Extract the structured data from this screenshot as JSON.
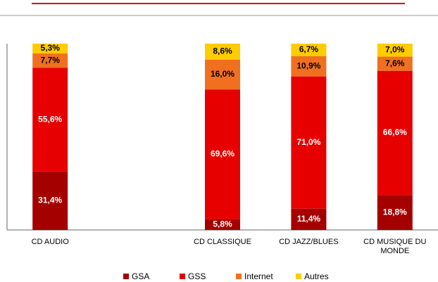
{
  "chart_data": {
    "type": "stacked_bar",
    "categories": [
      "CD AUDIO",
      null,
      "CD CLASSIQUE",
      "CD JAZZ/BLUES",
      "CD MUSIQUE DU MONDE"
    ],
    "series": [
      {
        "name": "GSA",
        "color": "#a50000",
        "values": [
          31.4,
          null,
          5.8,
          11.4,
          18.8
        ],
        "value_labels": [
          "31,4%",
          null,
          "5,8%",
          "11,4%",
          "18,8%"
        ]
      },
      {
        "name": "GSS",
        "color": "#e60000",
        "values": [
          55.6,
          null,
          69.6,
          71.0,
          66.6
        ],
        "value_labels": [
          "55,6%",
          null,
          "69,6%",
          "71,0%",
          "66,6%"
        ]
      },
      {
        "name": "Internet",
        "color": "#f07020",
        "values": [
          7.7,
          null,
          16.0,
          10.9,
          7.6
        ],
        "value_labels": [
          "7,7%",
          null,
          "16,0%",
          "10,9%",
          "7,6%"
        ]
      },
      {
        "name": "Autres",
        "color": "#ffcc00",
        "values": [
          5.3,
          null,
          8.6,
          6.7,
          7.0
        ],
        "value_labels": [
          "5,3%",
          null,
          "8,6%",
          "6,7%",
          "7,0%"
        ]
      }
    ],
    "ylim": [
      0,
      100
    ]
  }
}
